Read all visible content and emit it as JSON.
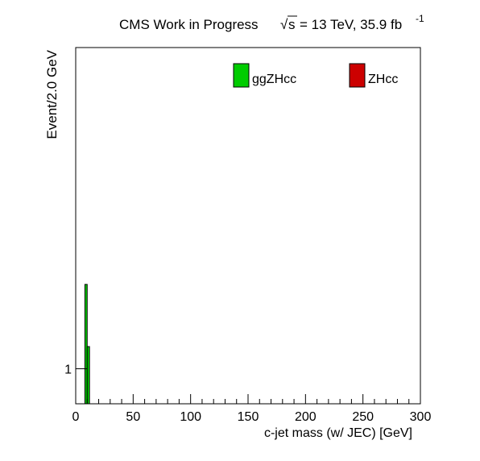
{
  "header": {
    "experiment": "CMS Work in Progress",
    "sqrt_symbol": "√",
    "s_symbol": "s",
    "energy_lumi": "= 13 TeV, 35.9 fb",
    "lumi_exponent": "-1"
  },
  "legend": {
    "entries": [
      {
        "label": "ggZHcc",
        "color": "#00cc00"
      },
      {
        "label": "ZHcc",
        "color": "#cc0000"
      }
    ]
  },
  "chart_data": {
    "type": "bar",
    "xlabel": "c-jet mass (w/ JEC) [GeV]",
    "ylabel": "Event/2.0 GeV",
    "xlim": [
      0,
      300
    ],
    "ylim": [
      0.75,
      14
    ],
    "yscale": "log",
    "grid": false,
    "legend_position": "top-right",
    "bin_width": 2.0,
    "xticks": [
      0,
      50,
      100,
      150,
      200,
      250,
      300
    ],
    "xtick_labels": [
      "0",
      "50",
      "100",
      "150",
      "200",
      "250",
      "300"
    ],
    "yticks": [
      1
    ],
    "ytick_labels": [
      "1"
    ],
    "series": [
      {
        "name": "ggZHcc",
        "color": "#00cc00",
        "bins": [
          {
            "x_low": 8,
            "x_high": 10,
            "value": 2.0
          },
          {
            "x_low": 10,
            "x_high": 12,
            "value": 1.2
          }
        ]
      },
      {
        "name": "ZHcc",
        "color": "#cc0000",
        "bins": []
      }
    ]
  }
}
